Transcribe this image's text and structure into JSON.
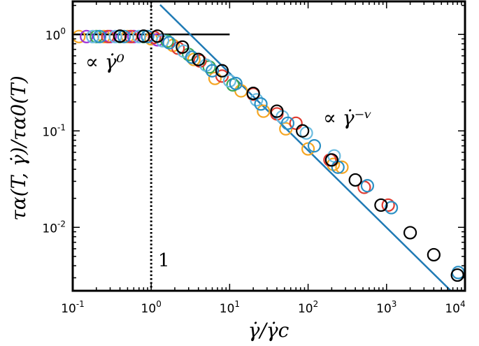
{
  "chart_data": {
    "type": "scatter",
    "title": "",
    "xlabel": "γ̇/γ̇c",
    "ylabel": "τα(T, γ̇)/τα0(T)",
    "x_scale": "log",
    "y_scale": "log",
    "xlim": [
      0.1,
      10000
    ],
    "ylim": [
      0.0022,
      2.2
    ],
    "grid": false,
    "x_ticks": [
      {
        "base": "10",
        "exp": "-1",
        "value": 0.1
      },
      {
        "base": "10",
        "exp": "0",
        "value": 1
      },
      {
        "base": "10",
        "exp": "1",
        "value": 10
      },
      {
        "base": "10",
        "exp": "2",
        "value": 100
      },
      {
        "base": "10",
        "exp": "3",
        "value": 1000
      },
      {
        "base": "10",
        "exp": "4",
        "value": 10000
      }
    ],
    "y_ticks": [
      {
        "base": "10",
        "exp": "0",
        "value": 1
      },
      {
        "base": "10",
        "exp": "-1",
        "value": 0.1
      },
      {
        "base": "10",
        "exp": "-2",
        "value": 0.01
      }
    ],
    "annotations": [
      {
        "text": "∝ γ̇⁰",
        "color": "#000000"
      },
      {
        "text": "∝ γ̇⁻ᵛ",
        "color": "#1f3fbf"
      },
      {
        "text": "1",
        "color": "#000000"
      }
    ],
    "reference_lines": [
      {
        "kind": "horizontal",
        "y": 1,
        "x_from": 0.1,
        "x_to": 10,
        "color": "#000000",
        "style": "solid"
      },
      {
        "kind": "vertical",
        "x": 1,
        "color": "#000000",
        "style": "dotted"
      },
      {
        "kind": "power-law",
        "x_from": 1.3,
        "x_to": 10000,
        "y_at_x1": 2.5,
        "exponent": -0.8,
        "color": "#1f7ab5",
        "style": "solid"
      }
    ],
    "series": [
      {
        "color": "#f5a623",
        "points": [
          [
            0.12,
            0.95
          ],
          [
            0.25,
            0.95
          ],
          [
            0.5,
            0.95
          ],
          [
            1.0,
            0.9
          ],
          [
            1.9,
            0.77
          ],
          [
            3.5,
            0.55
          ],
          [
            6.5,
            0.35
          ],
          [
            14,
            0.26
          ],
          [
            27,
            0.16
          ],
          [
            52,
            0.105
          ],
          [
            100,
            0.065
          ],
          [
            210,
            0.045
          ],
          [
            270,
            0.042
          ]
        ]
      },
      {
        "color": "#9b30d9",
        "points": [
          [
            0.15,
            0.95
          ],
          [
            0.3,
            0.95
          ],
          [
            0.6,
            0.95
          ],
          [
            1.2,
            0.88
          ]
        ]
      },
      {
        "color": "#3aa655",
        "points": [
          [
            0.2,
            0.95
          ],
          [
            0.4,
            0.95
          ],
          [
            0.8,
            0.95
          ],
          [
            1.6,
            0.85
          ],
          [
            3.0,
            0.62
          ],
          [
            5.5,
            0.46
          ],
          [
            11,
            0.3
          ]
        ]
      },
      {
        "color": "#e03c31",
        "points": [
          [
            0.28,
            0.95
          ],
          [
            0.55,
            0.95
          ],
          [
            1.1,
            0.93
          ],
          [
            2.2,
            0.72
          ],
          [
            4.2,
            0.53
          ],
          [
            8.0,
            0.37
          ],
          [
            20,
            0.24
          ],
          [
            40,
            0.15
          ],
          [
            70,
            0.12
          ],
          [
            190,
            0.05
          ],
          [
            520,
            0.026
          ],
          [
            1050,
            0.017
          ]
        ]
      },
      {
        "color": "#6bbce0",
        "points": [
          [
            0.18,
            0.95
          ],
          [
            0.35,
            0.95
          ],
          [
            0.7,
            0.95
          ],
          [
            1.4,
            0.86
          ],
          [
            2.6,
            0.67
          ],
          [
            5.0,
            0.48
          ],
          [
            10,
            0.33
          ],
          [
            22,
            0.21
          ],
          [
            47,
            0.14
          ],
          [
            95,
            0.095
          ],
          [
            215,
            0.055
          ]
        ]
      },
      {
        "color": "#2a8fc4",
        "points": [
          [
            0.22,
            0.95
          ],
          [
            0.45,
            0.95
          ],
          [
            0.9,
            0.95
          ],
          [
            1.7,
            0.82
          ],
          [
            3.3,
            0.58
          ],
          [
            6.0,
            0.42
          ],
          [
            12,
            0.31
          ],
          [
            25,
            0.19
          ],
          [
            55,
            0.12
          ],
          [
            120,
            0.07
          ],
          [
            240,
            0.042
          ],
          [
            570,
            0.027
          ],
          [
            1150,
            0.016
          ],
          [
            8200,
            0.0034
          ]
        ]
      },
      {
        "color": "#000000",
        "points": [
          [
            0.4,
            0.96
          ],
          [
            0.8,
            0.96
          ],
          [
            1.2,
            0.96
          ],
          [
            2.5,
            0.74
          ],
          [
            4.0,
            0.55
          ],
          [
            8.0,
            0.42
          ],
          [
            20,
            0.245
          ],
          [
            40,
            0.16
          ],
          [
            85,
            0.1
          ],
          [
            200,
            0.05
          ],
          [
            400,
            0.031
          ],
          [
            850,
            0.017
          ],
          [
            2000,
            0.0088
          ],
          [
            4000,
            0.0052
          ],
          [
            8000,
            0.0032
          ]
        ]
      }
    ]
  }
}
